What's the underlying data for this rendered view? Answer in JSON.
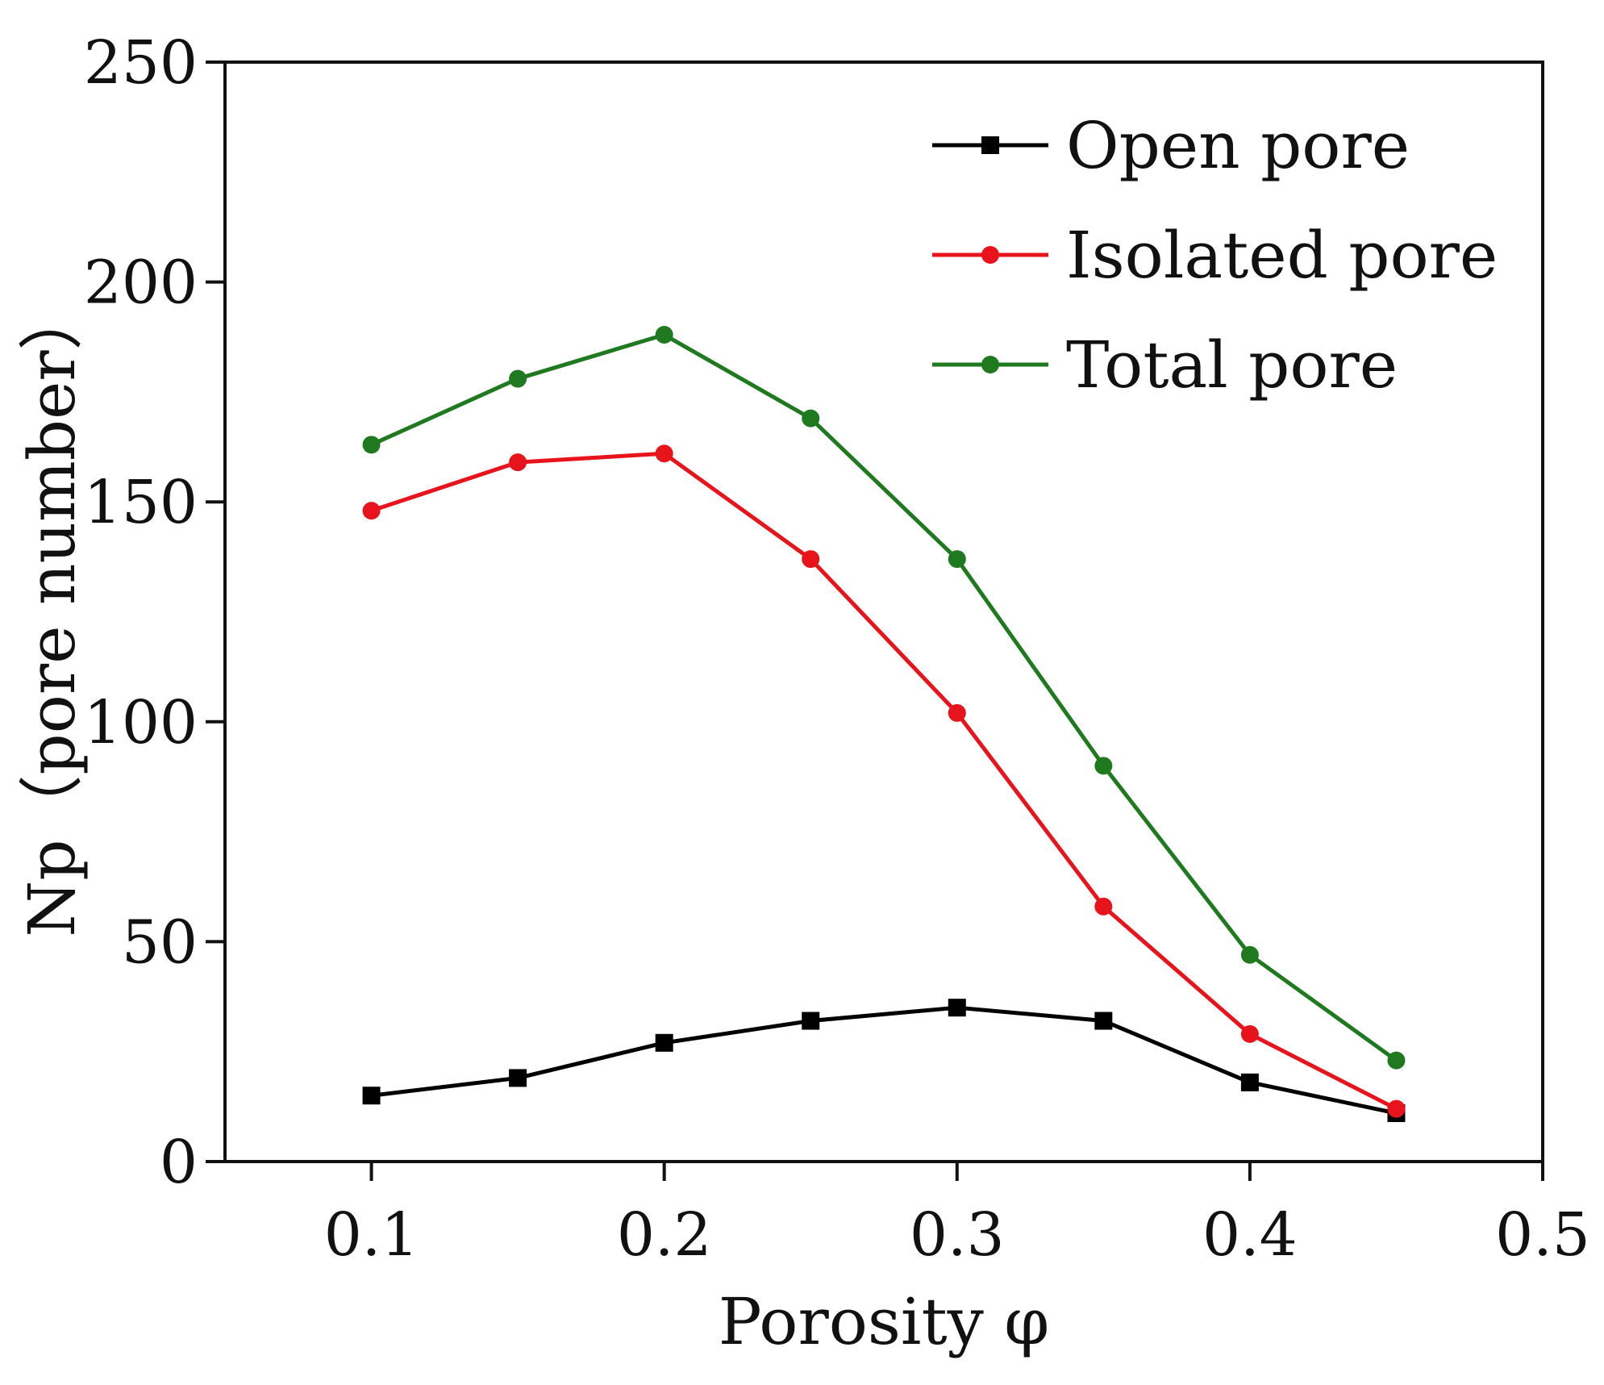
{
  "chart_data": {
    "type": "line",
    "title": "",
    "xlabel": "Porosity φ",
    "ylabel": "Np（pore number）",
    "xlim": [
      0.05,
      0.5
    ],
    "ylim": [
      0,
      250
    ],
    "xticks": [
      0.1,
      0.2,
      0.3,
      0.4,
      0.5
    ],
    "xtick_labels": [
      "0.1",
      "0.2",
      "0.3",
      "0.4",
      "0.5"
    ],
    "yticks": [
      0,
      50,
      100,
      150,
      200,
      250
    ],
    "ytick_labels": [
      "0",
      "50",
      "100",
      "150",
      "200",
      "250"
    ],
    "grid": false,
    "legend_position": "top-right",
    "x": [
      0.1,
      0.15,
      0.2,
      0.25,
      0.3,
      0.35,
      0.4,
      0.45
    ],
    "series": [
      {
        "name": "Open pore",
        "color": "#000000",
        "marker": "square",
        "values": [
          15,
          19,
          27,
          32,
          35,
          32,
          18,
          11
        ]
      },
      {
        "name": "Isolated pore",
        "color": "#e8141c",
        "marker": "circle",
        "values": [
          148,
          159,
          161,
          137,
          102,
          58,
          29,
          12
        ]
      },
      {
        "name": "Total pore",
        "color": "#1f7a1f",
        "marker": "circle",
        "values": [
          163,
          178,
          188,
          169,
          137,
          90,
          47,
          23
        ]
      }
    ]
  }
}
